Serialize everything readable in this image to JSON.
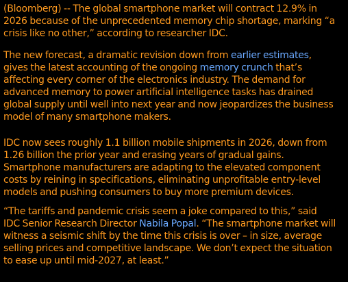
{
  "article": {
    "paragraphs": [
      {
        "lines": [
          [
            {
              "text": "(Bloomberg) -- The global smartphone market will contract 12.9% in"
            }
          ],
          [
            {
              "text": "2026 because of the unprecedented memory chip shortage, marking “a"
            }
          ],
          [
            {
              "text": "crisis like no other,” according to researcher IDC."
            }
          ]
        ]
      },
      {
        "lines": [
          [
            {
              "text": "The new forecast, a dramatic revision down from "
            },
            {
              "text": "earlier estimates",
              "link": true
            },
            {
              "text": ","
            }
          ],
          [
            {
              "text": "gives the latest accounting of the ongoing "
            },
            {
              "text": "memory crunch",
              "link": true
            },
            {
              "text": " that’s"
            }
          ],
          [
            {
              "text": "affecting every corner of the electronics industry. The demand for"
            }
          ],
          [
            {
              "text": "advanced memory to power artificial intelligence tasks has drained"
            }
          ],
          [
            {
              "text": "global supply until well into next year and now jeopardizes the business"
            }
          ],
          [
            {
              "text": "model of many smartphone makers."
            }
          ]
        ]
      },
      {
        "lines": [
          [
            {
              "text": "IDC now sees roughly 1.1 billion mobile shipments in 2026, down from"
            }
          ],
          [
            {
              "text": "1.26 billion the prior year and erasing years of gradual gains."
            }
          ],
          [
            {
              "text": "Smartphone manufacturers are adapting to the elevated component"
            }
          ],
          [
            {
              "text": "costs by reining in specifications, eliminating unprofitable entry-level"
            }
          ],
          [
            {
              "text": "models and pushing consumers to buy more premium devices."
            }
          ]
        ]
      },
      {
        "lines": [
          [
            {
              "text": "“The tariffs and pandemic crisis seem a joke compared to this,” said"
            }
          ],
          [
            {
              "text": "IDC Senior Research Director "
            },
            {
              "text": "Nabila Popal",
              "link": true
            },
            {
              "text": ". “The smartphone market will"
            }
          ],
          [
            {
              "text": "witness a seismic shift by the time this crisis is over – in size, average"
            }
          ],
          [
            {
              "text": "selling prices and competitive landscape. We don’t expect the situation"
            }
          ],
          [
            {
              "text": "to ease up until mid-2027, at least.”"
            }
          ]
        ]
      }
    ]
  },
  "colors": {
    "background": "#000000",
    "text": "#ff9a1f",
    "link": "#6aa9ff"
  }
}
